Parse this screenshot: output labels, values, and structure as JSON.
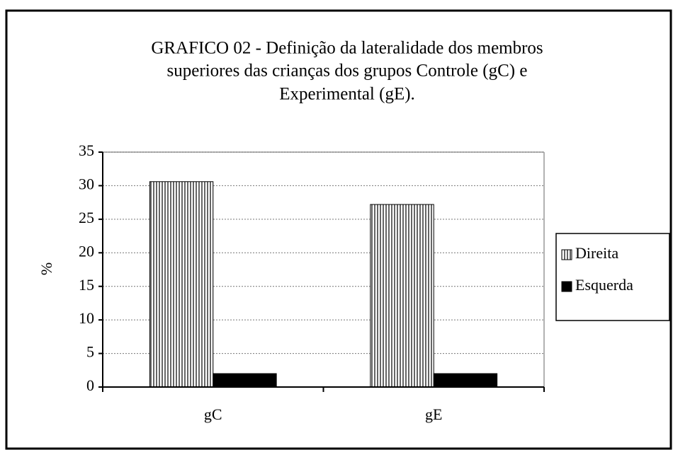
{
  "chart_data": {
    "type": "bar",
    "title": [
      "GRAFICO 02 - Definição da lateralidade dos membros",
      "superiores das crianças dos grupos Controle (gC) e",
      "Experimental (gE)."
    ],
    "y_label": "%",
    "categories": [
      "gC",
      "gE"
    ],
    "series": [
      {
        "name": "Direita",
        "color": "#ffffff",
        "hatch": "vertical",
        "values": [
          30.6,
          27.2
        ]
      },
      {
        "name": "Esquerda",
        "color": "#000000",
        "values": [
          2,
          2
        ]
      }
    ],
    "ylim": [
      0,
      35
    ],
    "yticks": [
      0,
      5,
      10,
      15,
      20,
      25,
      30,
      35
    ],
    "grid": true,
    "legend": "right"
  }
}
